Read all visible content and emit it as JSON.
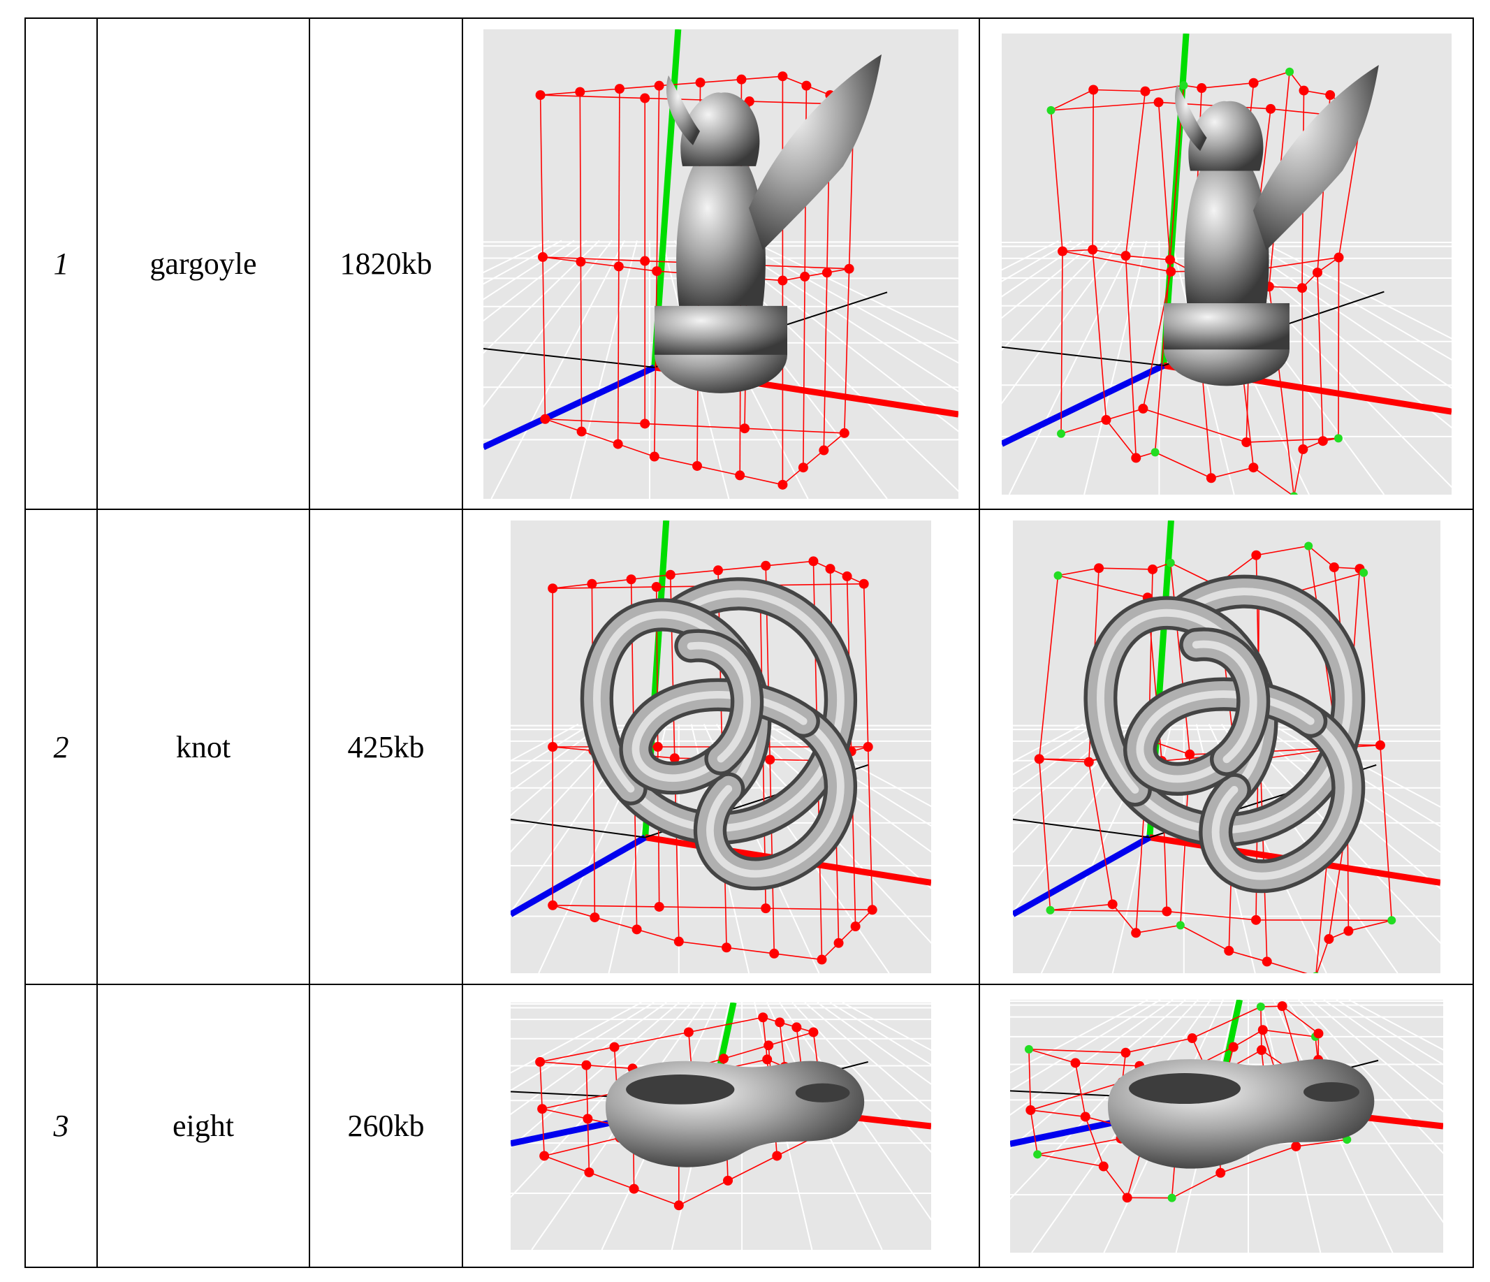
{
  "table": {
    "rows": [
      {
        "index": "1",
        "name": "gargoyle",
        "size": "1820kb",
        "model": "gargoyle"
      },
      {
        "index": "2",
        "name": "knot",
        "size": "425kb",
        "model": "knot"
      },
      {
        "index": "3",
        "name": "eight",
        "size": "260kb",
        "model": "eight"
      }
    ]
  },
  "colors": {
    "lattice": "#ff0000",
    "moved_points": "#22dd22",
    "y_axis": "#00dd00",
    "z_axis": "#0000ee",
    "x_axis": "#ff0000",
    "background": "#e6e6e6",
    "grid": "#ffffff",
    "model": "#9a9a9a"
  }
}
